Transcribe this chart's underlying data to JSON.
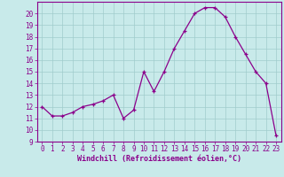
{
  "x": [
    0,
    1,
    2,
    3,
    4,
    5,
    6,
    7,
    8,
    9,
    10,
    11,
    12,
    13,
    14,
    15,
    16,
    17,
    18,
    19,
    20,
    21,
    22,
    23
  ],
  "y": [
    12,
    11.2,
    11.2,
    11.5,
    12,
    12.2,
    12.5,
    13,
    11,
    11.7,
    15,
    13.3,
    15,
    17,
    18.5,
    20,
    20.5,
    20.5,
    19.7,
    18,
    16.5,
    15,
    14,
    9.5
  ],
  "line_color": "#8b008b",
  "bg_color": "#c8eaea",
  "grid_color": "#a0cccc",
  "xlabel": "Windchill (Refroidissement éolien,°C)",
  "xlabel_color": "#8b008b",
  "tick_color": "#8b008b",
  "ylim": [
    9,
    21
  ],
  "xlim": [
    -0.5,
    23.5
  ],
  "yticks": [
    9,
    10,
    11,
    12,
    13,
    14,
    15,
    16,
    17,
    18,
    19,
    20
  ],
  "xticks": [
    0,
    1,
    2,
    3,
    4,
    5,
    6,
    7,
    8,
    9,
    10,
    11,
    12,
    13,
    14,
    15,
    16,
    17,
    18,
    19,
    20,
    21,
    22,
    23
  ],
  "tick_fontsize": 5.5,
  "xlabel_fontsize": 6.0
}
